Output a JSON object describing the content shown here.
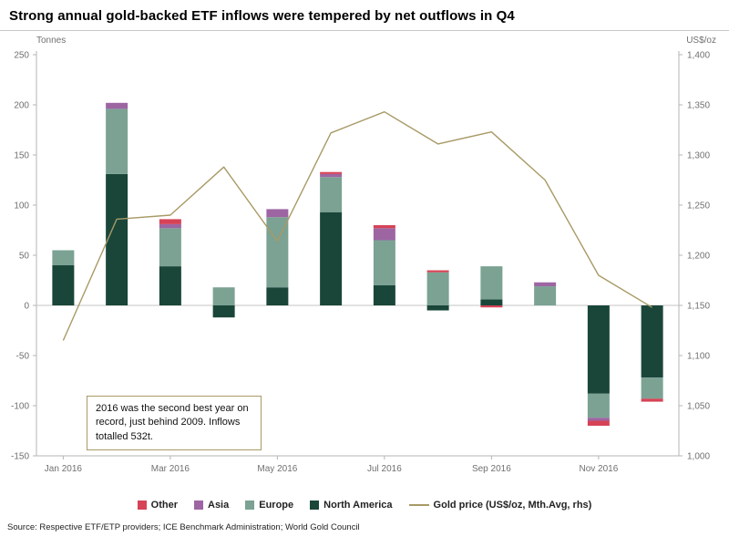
{
  "title": "Strong annual gold-backed ETF inflows were tempered by net outflows in Q4",
  "annotation": {
    "text": "2016 was the second best year on record, just behind 2009. Inflows totalled 532t."
  },
  "source": "Source: Respective ETF/ETP providers; ICE Benchmark Administration; World Gold Council",
  "chart_data": {
    "type": "combo-stacked-bar-line",
    "categories": [
      "Jan 2016",
      "Feb 2016",
      "Mar 2016",
      "Apr 2016",
      "May 2016",
      "Jun 2016",
      "Jul 2016",
      "Aug 2016",
      "Sep 2016",
      "Oct 2016",
      "Nov 2016",
      "Dec 2016"
    ],
    "bar_series": [
      {
        "name": "Other",
        "color": "#d64356",
        "values": [
          0,
          0,
          5,
          0,
          0,
          2,
          3,
          2,
          -2,
          0,
          -5,
          -3
        ]
      },
      {
        "name": "Asia",
        "color": "#9d66a2",
        "values": [
          0,
          6,
          4,
          0,
          8,
          3,
          12,
          0,
          0,
          4,
          -3,
          0
        ]
      },
      {
        "name": "Europe",
        "color": "#7ba293",
        "values": [
          15,
          65,
          38,
          18,
          70,
          35,
          45,
          33,
          33,
          19,
          -24,
          -21
        ]
      },
      {
        "name": "North America",
        "color": "#1a463a",
        "values": [
          40,
          131,
          39,
          -12,
          18,
          93,
          20,
          -5,
          6,
          0,
          -88,
          -72
        ]
      }
    ],
    "line_series": {
      "name": "Gold price (US$/oz, Mth.Avg, rhs)",
      "color": "#a89a66",
      "values": [
        1115,
        1236,
        1240,
        1288,
        1214,
        1322,
        1343,
        1311,
        1323,
        1275,
        1180,
        1148
      ]
    },
    "left_axis": {
      "label": "Tonnes",
      "range": [
        -150,
        250
      ],
      "tick_values": [
        250,
        200,
        150,
        100,
        50,
        0,
        -50,
        -100,
        -150
      ],
      "tick_labels": [
        "250",
        "200",
        "150",
        "100",
        "50",
        "0",
        "-50",
        "-100",
        "-150"
      ]
    },
    "right_axis": {
      "label": "US$/oz",
      "range": [
        1000,
        1400
      ],
      "tick_values": [
        1400,
        1350,
        1300,
        1250,
        1200,
        1150,
        1100,
        1050,
        1000
      ],
      "tick_labels": [
        "1,400",
        "1,350",
        "1,300",
        "1,250",
        "1,200",
        "1,150",
        "1,100",
        "1,050",
        "1,000"
      ]
    },
    "x_ticks": [
      {
        "month": 0,
        "label": "Jan 2016"
      },
      {
        "month": 2,
        "label": "Mar 2016"
      },
      {
        "month": 4,
        "label": "May 2016"
      },
      {
        "month": 6,
        "label": "Jul 2016"
      },
      {
        "month": 8,
        "label": "Sep 2016"
      },
      {
        "month": 10,
        "label": "Nov 2016"
      }
    ],
    "legend_position": "bottom",
    "grid": false
  }
}
